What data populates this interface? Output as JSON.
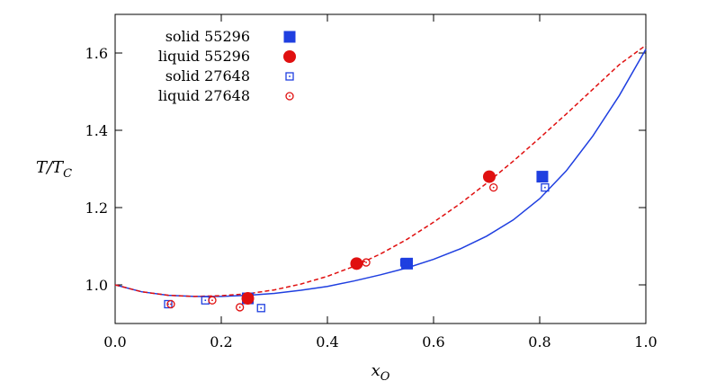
{
  "chart_data": {
    "type": "scatter",
    "xlabel": "x_O",
    "ylabel": "T/T_C",
    "xlim": [
      0.0,
      1.0
    ],
    "ylim": [
      0.9,
      1.7
    ],
    "xticks": [
      0.0,
      0.2,
      0.4,
      0.6,
      0.8,
      1.0
    ],
    "xtick_labels": [
      "0.0",
      "0.2",
      "0.4",
      "0.6",
      "0.8",
      "1.0"
    ],
    "yticks": [
      1.0,
      1.2,
      1.4,
      1.6
    ],
    "ytick_labels": [
      "1.0",
      "1.2",
      "1.4",
      "1.6"
    ],
    "legend_position": "top-left",
    "colors": {
      "solid": "#1f3fe0",
      "liquid": "#e01010"
    },
    "series": [
      {
        "name": "solid 55296",
        "marker": "filled-square",
        "color": "#1f3fe0",
        "x": [
          0.25,
          0.55,
          0.805
        ],
        "y": [
          0.965,
          1.055,
          1.28
        ]
      },
      {
        "name": "liquid 55296",
        "marker": "filled-circle",
        "color": "#e01010",
        "x": [
          0.25,
          0.455,
          0.705
        ],
        "y": [
          0.965,
          1.055,
          1.28
        ]
      },
      {
        "name": "solid 27648",
        "marker": "open-square",
        "color": "#1f3fe0",
        "x": [
          0.1,
          0.17,
          0.275,
          0.545,
          0.81
        ],
        "y": [
          0.95,
          0.96,
          0.94,
          1.058,
          1.252
        ]
      },
      {
        "name": "liquid 27648",
        "marker": "open-circle",
        "color": "#e01010",
        "x": [
          0.105,
          0.183,
          0.235,
          0.473,
          0.713
        ],
        "y": [
          0.95,
          0.96,
          0.942,
          1.058,
          1.252
        ]
      }
    ],
    "curves": [
      {
        "name": "solidus",
        "style": "solid",
        "color": "#1f3fe0",
        "x": [
          0.0,
          0.05,
          0.1,
          0.15,
          0.2,
          0.25,
          0.3,
          0.35,
          0.4,
          0.45,
          0.5,
          0.55,
          0.6,
          0.65,
          0.7,
          0.75,
          0.8,
          0.85,
          0.9,
          0.95,
          1.0
        ],
        "y": [
          1.0,
          0.982,
          0.973,
          0.97,
          0.97,
          0.973,
          0.978,
          0.986,
          0.996,
          1.01,
          1.026,
          1.044,
          1.066,
          1.093,
          1.126,
          1.168,
          1.223,
          1.295,
          1.385,
          1.49,
          1.61
        ]
      },
      {
        "name": "liquidus",
        "style": "dashed",
        "color": "#e01010",
        "x": [
          0.0,
          0.05,
          0.1,
          0.15,
          0.2,
          0.25,
          0.3,
          0.35,
          0.4,
          0.45,
          0.5,
          0.55,
          0.6,
          0.65,
          0.7,
          0.75,
          0.8,
          0.85,
          0.9,
          0.95,
          1.0
        ],
        "y": [
          1.0,
          0.982,
          0.973,
          0.97,
          0.972,
          0.977,
          0.987,
          1.002,
          1.022,
          1.048,
          1.08,
          1.118,
          1.162,
          1.21,
          1.263,
          1.32,
          1.38,
          1.442,
          1.506,
          1.57,
          1.62
        ]
      }
    ]
  }
}
